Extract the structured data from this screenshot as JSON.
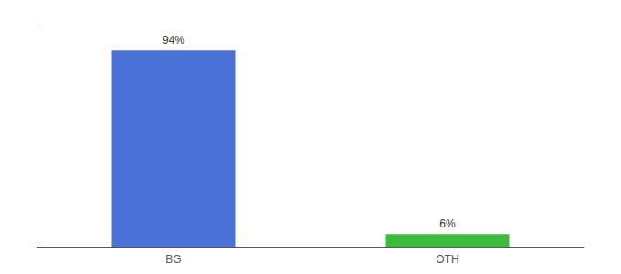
{
  "chart_data": {
    "type": "bar",
    "categories": [
      "BG",
      "OTH"
    ],
    "values": [
      94,
      6
    ],
    "value_labels": [
      "94%",
      "6%"
    ],
    "colors": [
      "#4a72d9",
      "#3dbb3d"
    ],
    "ylim": [
      0,
      105
    ],
    "yticks": [],
    "tick_labels": "x",
    "grid": false,
    "data_labels": true
  }
}
